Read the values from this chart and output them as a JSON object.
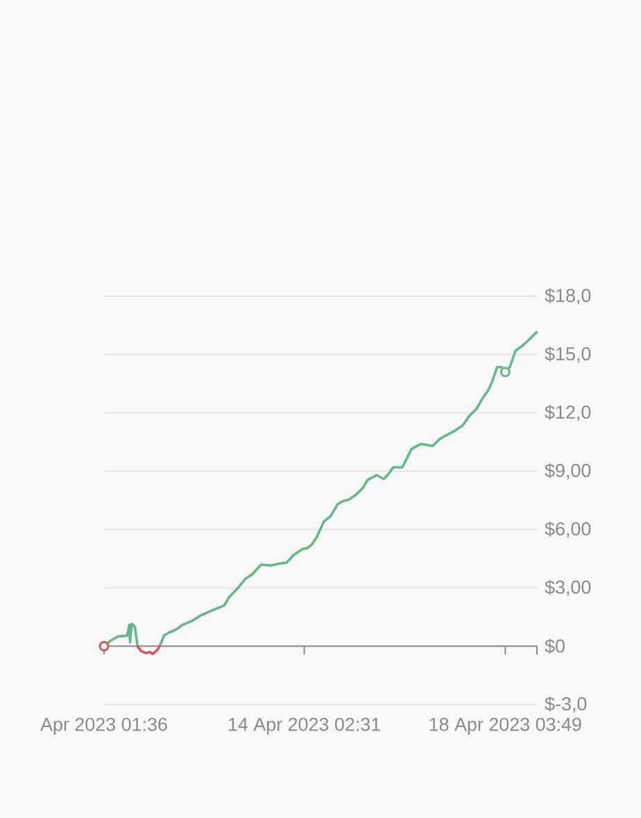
{
  "chart_data": {
    "type": "line",
    "x": [
      "2023-04-10T01:36",
      "2023-04-10T05:00",
      "2023-04-10T08:20",
      "2023-04-10T12:50",
      "2023-04-10T13:50",
      "2023-04-10T14:10",
      "2023-04-10T15:00",
      "2023-04-10T16:30",
      "2023-04-10T17:50",
      "2023-04-10T19:30",
      "2023-04-10T21:45",
      "2023-04-10T23:50",
      "2023-04-11T01:10",
      "2023-04-11T03:20",
      "2023-04-11T04:30",
      "2023-04-11T06:40",
      "2023-04-11T09:00",
      "2023-04-11T12:20",
      "2023-04-11T15:40",
      "2023-04-11T20:10",
      "2023-04-12T00:40",
      "2023-04-12T07:20",
      "2023-04-12T11:50",
      "2023-04-12T14:00",
      "2023-04-12T18:30",
      "2023-04-12T21:50",
      "2023-04-13T01:20",
      "2023-04-13T05:40",
      "2023-04-13T10:10",
      "2023-04-13T14:40",
      "2023-04-13T18:00",
      "2023-04-13T21:30",
      "2023-04-14T01:50",
      "2023-04-14T04:10",
      "2023-04-14T06:20",
      "2023-04-14T08:30",
      "2023-04-14T12:00",
      "2023-04-14T15:20",
      "2023-04-14T18:40",
      "2023-04-14T21:00",
      "2023-04-15T00:20",
      "2023-04-15T03:40",
      "2023-04-15T07:00",
      "2023-04-15T09:10",
      "2023-04-15T13:40",
      "2023-04-15T17:00",
      "2023-04-15T19:20",
      "2023-04-15T21:30",
      "2023-04-16T02:00",
      "2023-04-16T06:30",
      "2023-04-16T11:00",
      "2023-04-16T16:40",
      "2023-04-16T20:00",
      "2023-04-16T23:20",
      "2023-04-17T03:40",
      "2023-04-17T07:10",
      "2023-04-17T10:30",
      "2023-04-17T13:50",
      "2023-04-17T17:10",
      "2023-04-17T19:30",
      "2023-04-17T21:40",
      "2023-04-17T23:50",
      "2023-04-18T02:10",
      "2023-04-18T03:50",
      "2023-04-18T06:00",
      "2023-04-18T08:50",
      "2023-04-18T12:10",
      "2023-04-18T15:40",
      "2023-04-18T19:00"
    ],
    "series": [
      {
        "color": "#64b88c",
        "values": [
          0,
          0.3,
          0.5,
          0.55,
          1.1,
          0.2,
          1.15,
          1.0,
          0,
          null,
          null,
          null,
          null,
          null,
          0,
          0.55,
          0.7,
          0.85,
          1.1,
          1.3,
          1.6,
          1.9,
          2.1,
          2.5,
          3.0,
          3.45,
          3.7,
          4.2,
          4.15,
          4.25,
          4.3,
          4.7,
          5.0,
          5.05,
          5.25,
          5.6,
          6.4,
          6.7,
          7.3,
          7.45,
          7.55,
          7.8,
          8.15,
          8.55,
          8.8,
          8.6,
          8.85,
          9.2,
          9.2,
          10.15,
          10.4,
          10.3,
          10.65,
          10.85,
          11.1,
          11.35,
          11.85,
          12.2,
          12.8,
          13.15,
          13.65,
          14.35,
          14.35,
          14.1,
          14.35,
          15.2,
          15.45,
          15.8,
          16.15
        ]
      },
      {
        "color": "#d4595b",
        "values": [
          null,
          null,
          null,
          null,
          null,
          null,
          null,
          null,
          0,
          -0.25,
          -0.35,
          -0.3,
          -0.4,
          -0.2,
          0,
          null,
          null,
          null,
          null,
          null,
          null,
          null,
          null,
          null,
          null,
          null,
          null,
          null,
          null,
          null,
          null,
          null,
          null,
          null,
          null,
          null,
          null,
          null,
          null,
          null,
          null,
          null,
          null,
          null,
          null,
          null,
          null,
          null,
          null,
          null,
          null,
          null,
          null,
          null,
          null,
          null,
          null,
          null,
          null,
          null,
          null,
          null,
          null,
          null,
          null,
          null,
          null,
          null,
          null
        ]
      },
      {
        "type": "scatter",
        "marker": "circle",
        "x": [
          "2023-04-10T01:36",
          "2023-04-18T03:50"
        ],
        "values": [
          0,
          14.1
        ],
        "colors": [
          "#d4595b",
          "#64b88c"
        ]
      }
    ],
    "xlim": [
      "2023-04-10T01:36",
      "2023-04-18T19:10"
    ],
    "xticks": [
      {
        "value": "2023-04-10T01:36",
        "label": "Apr 2023 01:36"
      },
      {
        "value": "2023-04-14T02:31",
        "label": "14 Apr 2023 02:31"
      },
      {
        "value": "2023-04-18T03:49",
        "label": "18 Apr 2023 03:49"
      },
      {
        "value": "2023-04-18T19:10",
        "label": null
      }
    ],
    "ylim": [
      -3,
      18
    ],
    "yticks": [
      {
        "value": -3,
        "label": "$-3,0"
      },
      {
        "value": 0,
        "label": "$0"
      },
      {
        "value": 3,
        "label": "$3,00"
      },
      {
        "value": 6,
        "label": "$6,00"
      },
      {
        "value": 9,
        "label": "$9,00"
      },
      {
        "value": 12,
        "label": "$12,0"
      },
      {
        "value": 15,
        "label": "$15,0"
      },
      {
        "value": 18,
        "label": "$18,0"
      }
    ],
    "grid": "y",
    "line_style": "solid"
  }
}
